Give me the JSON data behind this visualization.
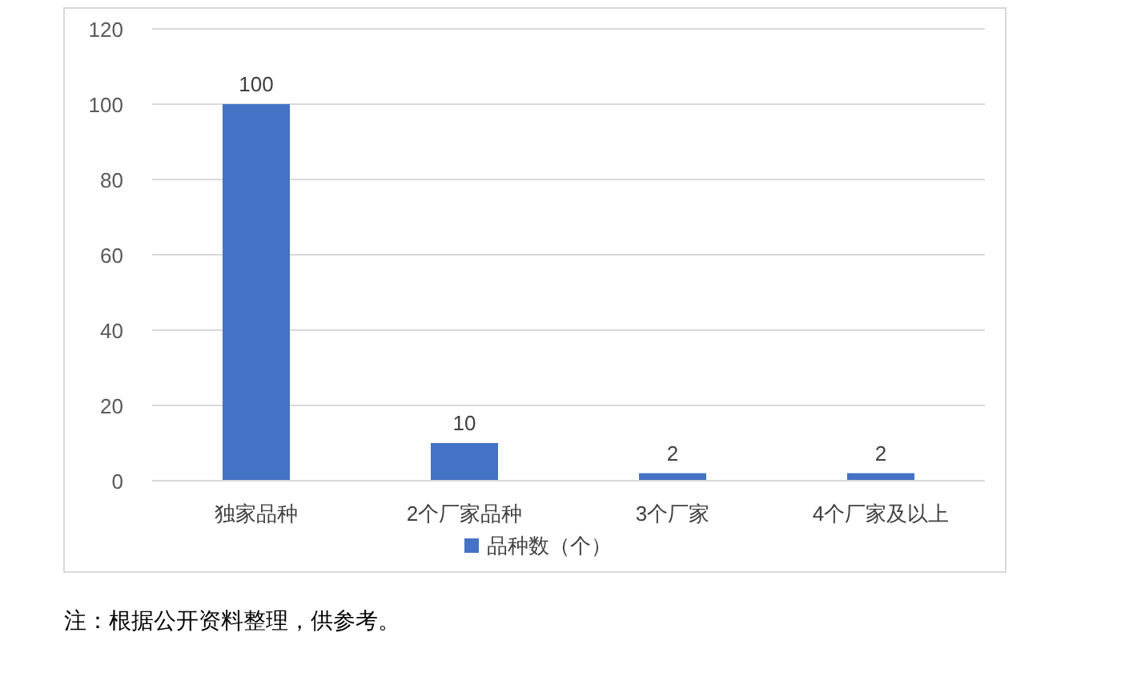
{
  "chart_data": {
    "type": "bar",
    "categories": [
      "独家品种",
      "2个厂家品种",
      "3个厂家",
      "4个厂家及以上"
    ],
    "series": [
      {
        "name": "品种数（个）",
        "color": "#4472c4",
        "values": [
          100,
          10,
          2,
          2
        ]
      }
    ],
    "ylim": [
      0,
      120
    ],
    "yticks": [
      0,
      20,
      40,
      60,
      80,
      100,
      120
    ],
    "grid": "y",
    "data_labels": true,
    "legend": "bottom",
    "annotations": [
      "注：根据公开资料整理，供参考。"
    ]
  }
}
